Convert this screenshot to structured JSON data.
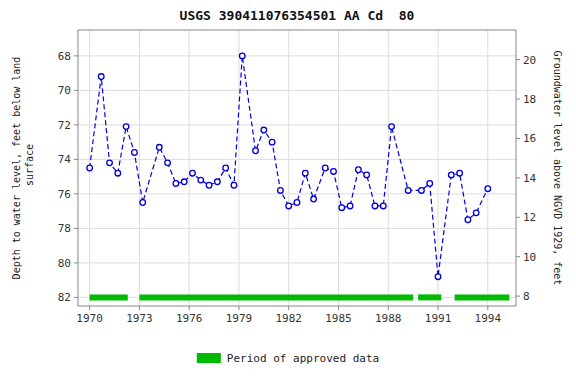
{
  "chart_data": {
    "type": "line",
    "title": "USGS 390411076354501 AA Cd  80",
    "y_label": "Depth to water level, feet below land\n surface",
    "y2_label": "Groundwater level above NGVD 1929, feet",
    "x": [
      1970.0,
      1970.7,
      1971.2,
      1971.7,
      1972.2,
      1972.7,
      1973.2,
      1974.2,
      1974.7,
      1975.2,
      1975.7,
      1976.2,
      1976.7,
      1977.2,
      1977.7,
      1978.2,
      1978.7,
      1979.2,
      1980.0,
      1980.5,
      1981.0,
      1981.5,
      1982.0,
      1982.5,
      1983.0,
      1983.5,
      1984.2,
      1984.7,
      1985.2,
      1985.7,
      1986.2,
      1986.7,
      1987.2,
      1987.7,
      1988.2,
      1989.2,
      1990.0,
      1990.5,
      1991.0,
      1991.8,
      1992.3,
      1992.8,
      1993.3,
      1994.0
    ],
    "series": [
      {
        "color": "#0000dd",
        "line_style": "dashed",
        "marker": "circle",
        "values": [
          74.5,
          69.2,
          74.2,
          74.8,
          72.1,
          73.6,
          76.5,
          73.3,
          74.2,
          75.4,
          75.3,
          74.8,
          75.2,
          75.5,
          75.3,
          74.5,
          75.5,
          68.0,
          73.5,
          72.3,
          73.0,
          75.8,
          76.7,
          76.5,
          74.8,
          76.3,
          74.5,
          74.7,
          76.8,
          76.7,
          74.6,
          74.9,
          76.7,
          76.7,
          72.1,
          75.8,
          75.8,
          75.4,
          80.8,
          74.9,
          74.8,
          77.5,
          77.1,
          75.7
        ]
      }
    ],
    "approved_periods": {
      "name": "Period of approved data",
      "color": "#00bb00",
      "y": 82.0,
      "ranges": [
        [
          1970.0,
          1972.3
        ],
        [
          1973.0,
          1989.5
        ],
        [
          1989.8,
          1991.2
        ],
        [
          1992.0,
          1995.3
        ]
      ]
    },
    "xlim": [
      1969.3,
      1995.7
    ],
    "xticks": [
      1970,
      1973,
      1976,
      1979,
      1982,
      1985,
      1988,
      1991,
      1994
    ],
    "ylim": [
      82.5,
      66.5
    ],
    "yticks": [
      68,
      70,
      72,
      74,
      76,
      78,
      80,
      82
    ],
    "y2lim": [
      7.5,
      21.5
    ],
    "y2ticks": [
      8,
      10,
      12,
      14,
      16,
      18,
      20
    ],
    "grid": true,
    "legend": "bottom"
  }
}
